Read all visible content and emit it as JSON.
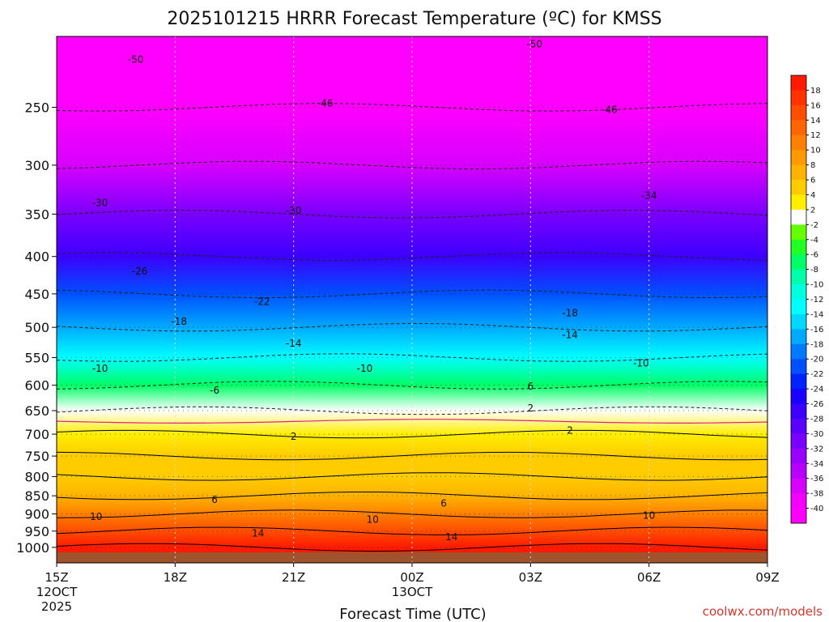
{
  "chart_data": {
    "type": "heatmap",
    "title": "2025101215 HRRR Forecast Temperature (ºC) for KMSS",
    "xlabel": "Forecast Time (UTC)",
    "ylabel": "",
    "credit": "coolwx.com/models",
    "x_ticks": [
      {
        "hour": 0,
        "label": "15Z",
        "sub1": "12OCT",
        "sub2": "2025"
      },
      {
        "hour": 3,
        "label": "18Z",
        "sub1": "",
        "sub2": ""
      },
      {
        "hour": 6,
        "label": "21Z",
        "sub1": "",
        "sub2": ""
      },
      {
        "hour": 9,
        "label": "00Z",
        "sub1": "13OCT",
        "sub2": ""
      },
      {
        "hour": 12,
        "label": "03Z",
        "sub1": "",
        "sub2": ""
      },
      {
        "hour": 15,
        "label": "06Z",
        "sub1": "",
        "sub2": ""
      },
      {
        "hour": 18,
        "label": "09Z",
        "sub1": "",
        "sub2": ""
      }
    ],
    "y_axis": {
      "scale": "log-pressure",
      "units": "hPa",
      "ticks": [
        "250",
        "300",
        "350",
        "400",
        "450",
        "500",
        "550",
        "600",
        "650",
        "700",
        "750",
        "800",
        "850",
        "900",
        "950",
        "1000"
      ]
    },
    "colorbar": {
      "labels": [
        "18",
        "16",
        "14",
        "12",
        "10",
        "8",
        "6",
        "4",
        "2",
        "-2",
        "-4",
        "-6",
        "-8",
        "-10",
        "-12",
        "-14",
        "-16",
        "-18",
        "-20",
        "-22",
        "-24",
        "-26",
        "-28",
        "-30",
        "-32",
        "-34",
        "-36",
        "-38",
        "-40"
      ],
      "colors": [
        "#ff1a00",
        "#ff3200",
        "#ff4d00",
        "#ff6600",
        "#ff8000",
        "#ff9900",
        "#ffb300",
        "#ffcc00",
        "#ffee00",
        "#ffffff",
        "#66ff00",
        "#22ff22",
        "#00ff66",
        "#00ffaa",
        "#00ffe0",
        "#00ffff",
        "#00d8ff",
        "#00aaff",
        "#007bff",
        "#0050ff",
        "#0022ff",
        "#1a00ff",
        "#3c00ff",
        "#5a00ff",
        "#7a00ff",
        "#9900ff",
        "#b800ff",
        "#d800ff",
        "#f500ff",
        "#ff00ff"
      ]
    },
    "bands": [
      {
        "p": 200,
        "t": -54
      },
      {
        "p": 250,
        "t": -46
      },
      {
        "p": 300,
        "t": -38
      },
      {
        "p": 350,
        "t": -31
      },
      {
        "p": 400,
        "t": -27
      },
      {
        "p": 450,
        "t": -22
      },
      {
        "p": 500,
        "t": -18
      },
      {
        "p": 550,
        "t": -13
      },
      {
        "p": 600,
        "t": -8
      },
      {
        "p": 650,
        "t": -2
      },
      {
        "p": 700,
        "t": 3
      },
      {
        "p": 750,
        "t": 4
      },
      {
        "p": 800,
        "t": 5
      },
      {
        "p": 850,
        "t": 7
      },
      {
        "p": 900,
        "t": 10
      },
      {
        "p": 950,
        "t": 14
      },
      {
        "p": 1000,
        "t": 18
      }
    ],
    "contour_labels": [
      {
        "text": "-50",
        "hour": 2.0,
        "p": 215
      },
      {
        "text": "-50",
        "hour": 12.1,
        "p": 205
      },
      {
        "text": "-46",
        "hour": 6.8,
        "p": 247
      },
      {
        "text": "-46",
        "hour": 14.0,
        "p": 252
      },
      {
        "text": "-30",
        "hour": 1.1,
        "p": 338
      },
      {
        "text": "-30",
        "hour": 6.0,
        "p": 346
      },
      {
        "text": "-34",
        "hour": 15.0,
        "p": 330
      },
      {
        "text": "-26",
        "hour": 2.1,
        "p": 419
      },
      {
        "text": "-22",
        "hour": 5.2,
        "p": 461
      },
      {
        "text": "-18",
        "hour": 3.1,
        "p": 491
      },
      {
        "text": "-18",
        "hour": 13.0,
        "p": 478
      },
      {
        "text": "-14",
        "hour": 6.0,
        "p": 526
      },
      {
        "text": "-14",
        "hour": 13.0,
        "p": 512
      },
      {
        "text": "-10",
        "hour": 1.1,
        "p": 569
      },
      {
        "text": "-10",
        "hour": 7.8,
        "p": 569
      },
      {
        "text": "-10",
        "hour": 14.8,
        "p": 560
      },
      {
        "text": "-6",
        "hour": 4.0,
        "p": 610
      },
      {
        "text": "6",
        "hour": 12.0,
        "p": 602
      },
      {
        "text": "2",
        "hour": 12.0,
        "p": 645
      },
      {
        "text": "2",
        "hour": 6.0,
        "p": 705
      },
      {
        "text": "2",
        "hour": 13.0,
        "p": 692
      },
      {
        "text": "6",
        "hour": 4.0,
        "p": 860
      },
      {
        "text": "6",
        "hour": 9.8,
        "p": 870
      },
      {
        "text": "10",
        "hour": 1.0,
        "p": 908
      },
      {
        "text": "10",
        "hour": 8.0,
        "p": 916
      },
      {
        "text": "10",
        "hour": 15.0,
        "p": 905
      },
      {
        "text": "14",
        "hour": 5.1,
        "p": 957
      },
      {
        "text": "14",
        "hour": 10.0,
        "p": 968
      }
    ]
  }
}
